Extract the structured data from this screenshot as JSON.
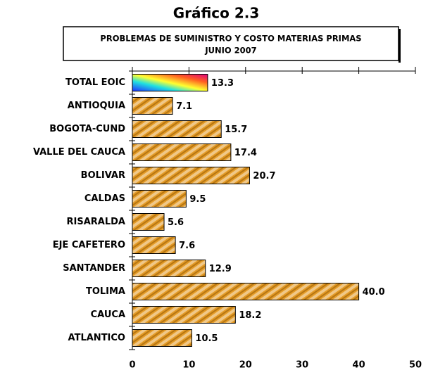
{
  "chart_data": {
    "type": "bar",
    "orientation": "horizontal",
    "title": "Gráfico 2.3",
    "subtitle": [
      "PROBLEMAS DE SUMINISTRO Y COSTO MATERIAS PRIMAS",
      "JUNIO 2007"
    ],
    "categories": [
      "TOTAL EOIC",
      "ANTIOQUIA",
      "BOGOTA-CUND",
      "VALLE DEL CAUCA",
      "BOLIVAR",
      "CALDAS",
      "RISARALDA",
      "EJE CAFETERO",
      "SANTANDER",
      "TOLIMA",
      "CAUCA",
      "ATLANTICO"
    ],
    "values": [
      13.3,
      7.1,
      15.7,
      17.4,
      20.7,
      9.5,
      5.6,
      7.6,
      12.9,
      40.0,
      18.2,
      10.5
    ],
    "value_labels": [
      "13.3",
      "7.1",
      "15.7",
      "17.4",
      "20.7",
      "9.5",
      "5.6",
      "7.6",
      "12.9",
      "40.0",
      "18.2",
      "10.5"
    ],
    "color": "#e39a26",
    "xlim": [
      0,
      50
    ],
    "xticks": [
      0,
      10,
      20,
      30,
      40,
      50
    ]
  }
}
